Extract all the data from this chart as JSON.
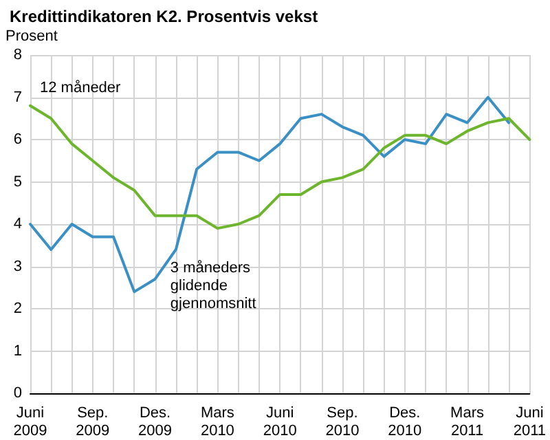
{
  "chart_data": {
    "type": "line",
    "title": "Kredittindikatoren K2. Prosentvis vekst",
    "ylabel": "Prosent",
    "categories": [
      "Juni 2009",
      null,
      null,
      "Sep. 2009",
      null,
      null,
      "Des. 2009",
      null,
      null,
      "Mars 2010",
      null,
      null,
      "Juni 2010",
      null,
      null,
      "Sep. 2010",
      null,
      null,
      "Des. 2010",
      null,
      null,
      "Mars 2011",
      null,
      null,
      "Juni 2011"
    ],
    "series": [
      {
        "name": "3 måneders glidende gjennomsnitt",
        "color": "#3a8fc4",
        "values": [
          4.0,
          3.4,
          4.0,
          3.7,
          3.7,
          2.4,
          2.7,
          3.4,
          5.3,
          5.7,
          5.7,
          5.5,
          5.9,
          6.5,
          6.6,
          6.3,
          6.1,
          5.6,
          6.0,
          5.9,
          6.6,
          6.4,
          7.0,
          6.4,
          null
        ]
      },
      {
        "name": "12 måneder",
        "color": "#6cb52d",
        "values": [
          6.8,
          6.5,
          5.9,
          5.5,
          5.1,
          4.8,
          4.2,
          4.2,
          4.2,
          3.9,
          4.0,
          4.2,
          4.7,
          4.7,
          5.0,
          5.1,
          5.3,
          5.8,
          6.1,
          6.1,
          5.9,
          6.2,
          6.4,
          6.5,
          6.0
        ]
      }
    ],
    "ylim": [
      0,
      8
    ],
    "yticks": [
      0,
      1,
      2,
      3,
      4,
      5,
      6,
      7,
      8
    ],
    "grid": true,
    "legend": false,
    "marker": "none",
    "line_style": "solid"
  }
}
